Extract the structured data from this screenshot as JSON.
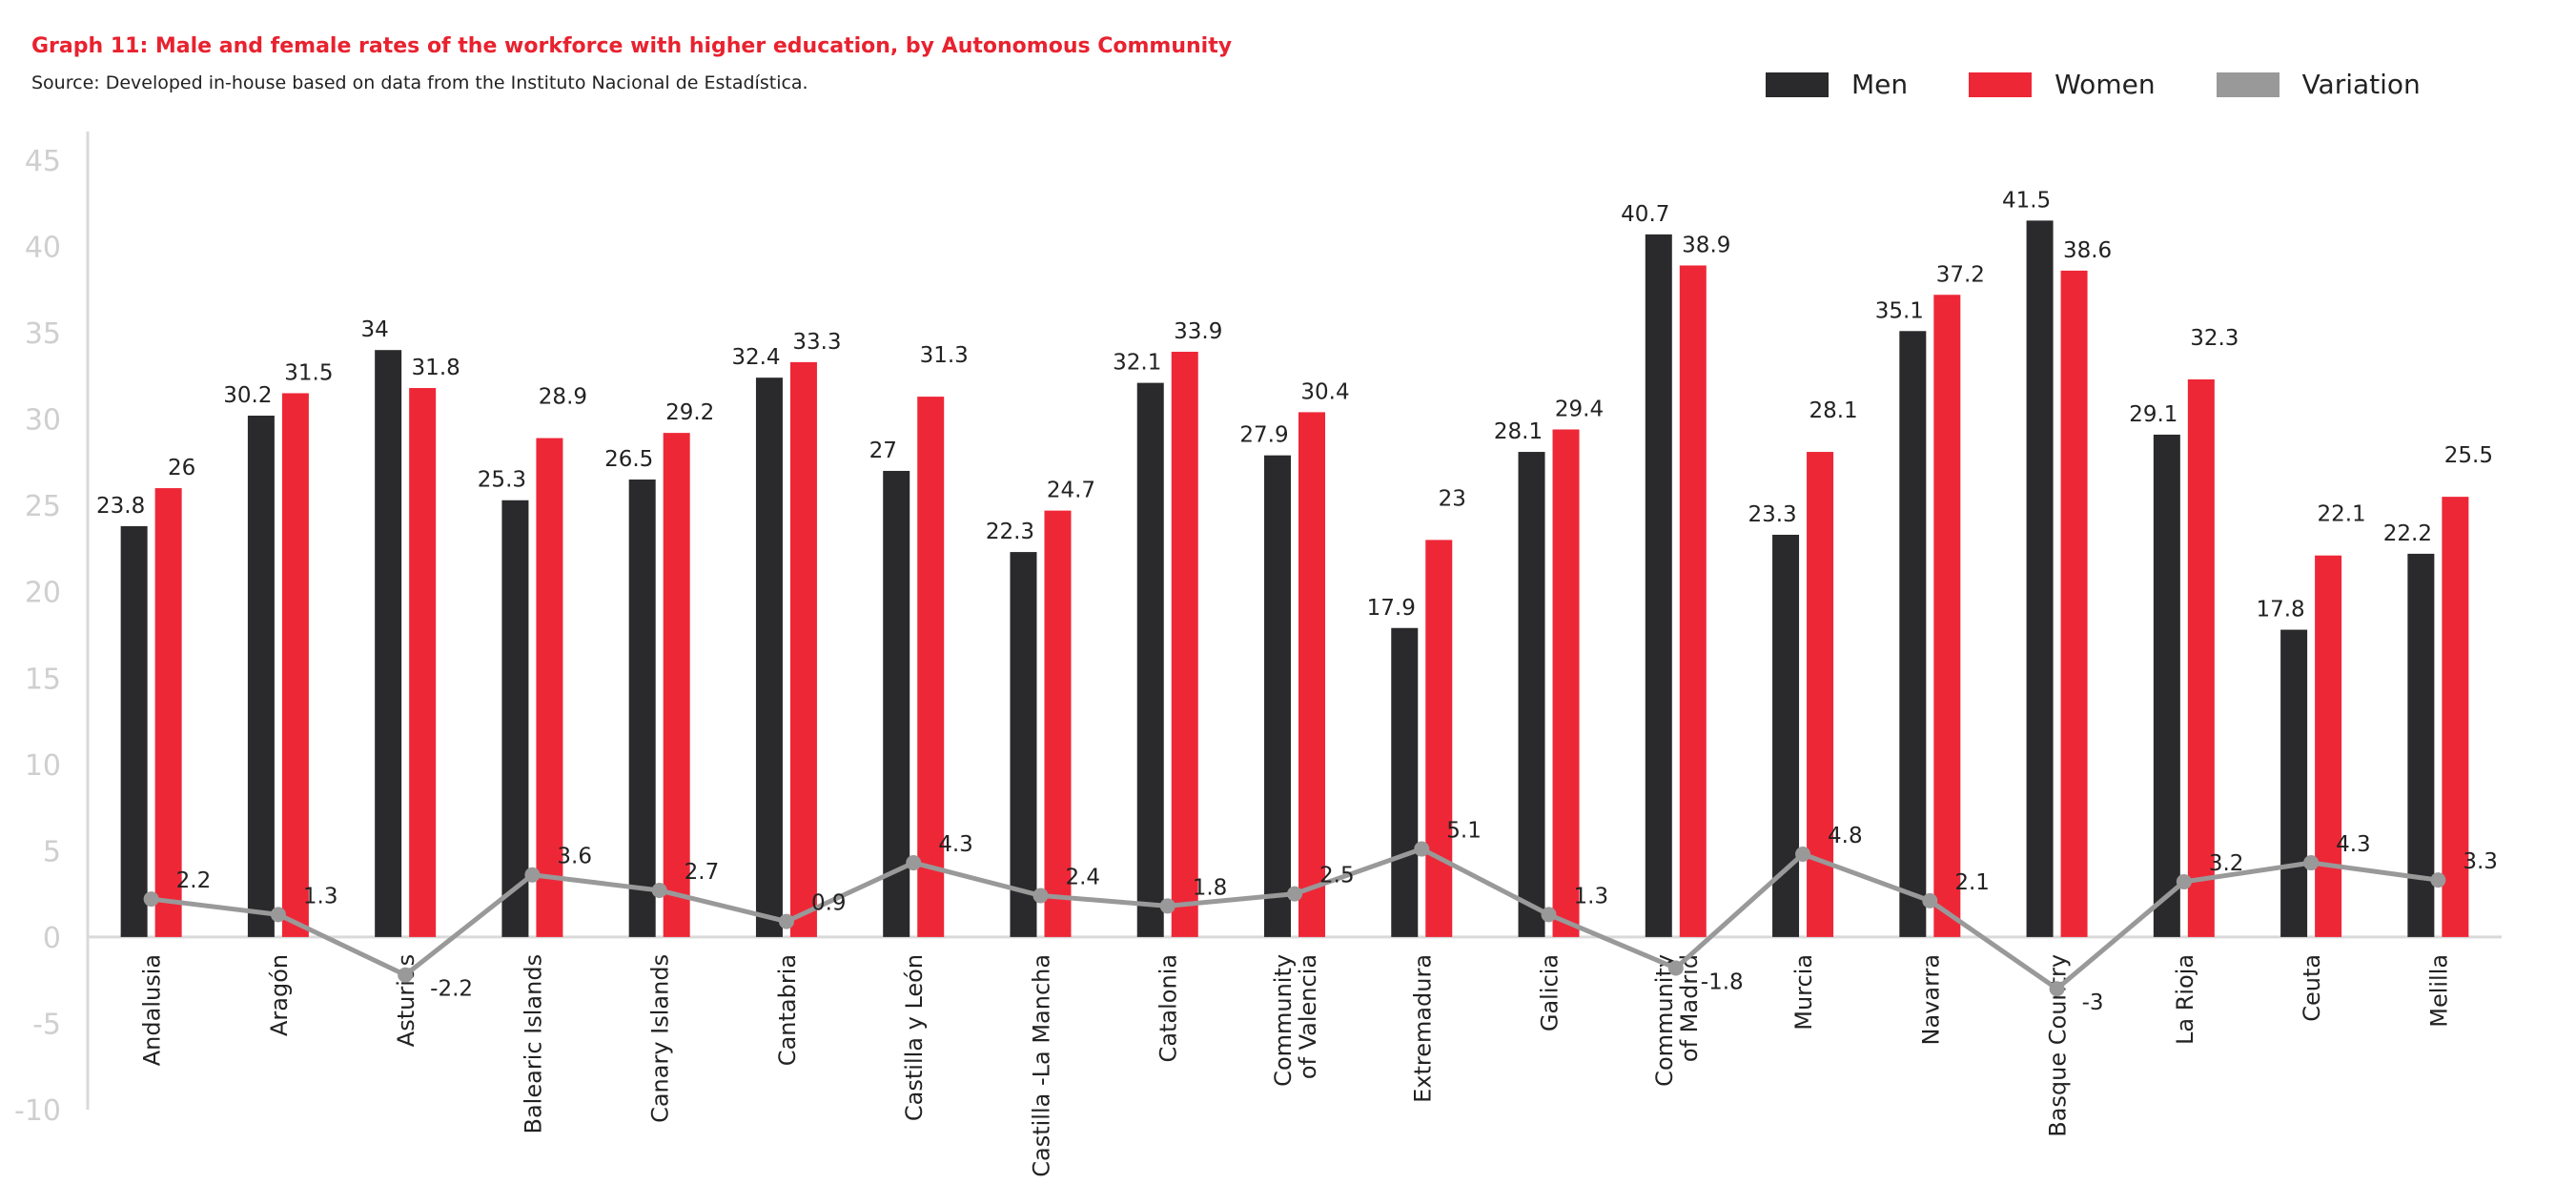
{
  "chart_data": {
    "type": "bar",
    "title": "Graph 11: Male and female rates of the workforce with higher education, by Autonomous Community",
    "subtitle": "Source: Developed in-house based on data from the Instituto Nacional de Estadística.",
    "categories": [
      "Andalusia",
      "Aragón",
      "Asturias",
      "Balearic Islands",
      "Canary Islands",
      "Cantabria",
      "Castilla y León",
      "Castilla -La Mancha",
      "Catalonia",
      "Community\nof Valencia",
      "Extremadura",
      "Galicia",
      "Community\nof Madrid",
      "Murcia",
      "Navarra",
      "Basque Country",
      "La Rioja",
      "Ceuta",
      "Melilla"
    ],
    "series": [
      {
        "name": "Men",
        "type": "bar",
        "color": "#2a2a2c",
        "values": [
          23.8,
          30.2,
          34,
          25.3,
          26.5,
          32.4,
          27,
          22.3,
          32.1,
          27.9,
          17.9,
          28.1,
          40.7,
          23.3,
          35.1,
          41.5,
          29.1,
          17.8,
          22.2
        ]
      },
      {
        "name": "Women",
        "type": "bar",
        "color": "#ee2737",
        "values": [
          26,
          31.5,
          31.8,
          28.9,
          29.2,
          33.3,
          31.3,
          24.7,
          33.9,
          30.4,
          23,
          29.4,
          38.9,
          28.1,
          37.2,
          38.6,
          32.3,
          22.1,
          25.5
        ]
      },
      {
        "name": "Variation",
        "type": "line",
        "color": "#999999",
        "values": [
          2.2,
          1.3,
          -2.2,
          3.6,
          2.7,
          0.9,
          4.3,
          2.4,
          1.8,
          2.5,
          5.1,
          1.3,
          -1.8,
          4.8,
          2.1,
          -3,
          3.2,
          4.3,
          3.3
        ]
      }
    ],
    "ylim": [
      -10,
      45
    ],
    "yticks": [
      45,
      40,
      35,
      30,
      25,
      20,
      15,
      10,
      5,
      0,
      -5,
      -10
    ],
    "grid": false,
    "legend_position": "top-right",
    "xlabel": "",
    "ylabel": ""
  }
}
